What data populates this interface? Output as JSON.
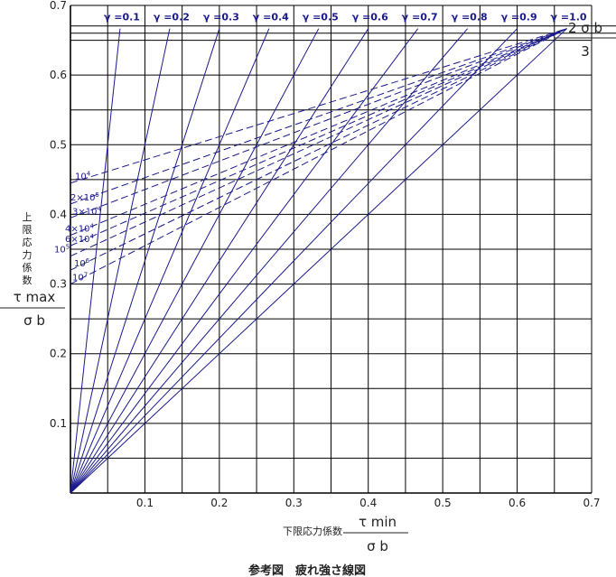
{
  "chart_data": {
    "type": "line",
    "title": "参考図　疲れ強さ線図",
    "xlabel": "下限応力係数",
    "xlabel_fraction": {
      "numerator": "τ min",
      "denominator": "σ b"
    },
    "ylabel": "上限応力係数",
    "ylabel_fraction": {
      "numerator": "τ max",
      "denominator": "σ b"
    },
    "xlim": [
      0,
      0.7
    ],
    "ylim": [
      0,
      0.7
    ],
    "x_ticks": [
      "0.1",
      "0.2",
      "0.3",
      "0.4",
      "0.5",
      "0.6",
      "0.7"
    ],
    "y_ticks": [
      "0.1",
      "0.2",
      "0.3",
      "0.4",
      "0.5",
      "0.6",
      "0.7"
    ],
    "grid": true,
    "grid_step": 0.05,
    "apex": {
      "x": 0.6667,
      "y": 0.6667,
      "label_numerator": "2 σ b",
      "label_denominator": "3"
    },
    "ratio_lines": [
      {
        "label": "γ =0.1",
        "ratio": 0.1
      },
      {
        "label": "γ =0.2",
        "ratio": 0.2
      },
      {
        "label": "γ =0.3",
        "ratio": 0.3
      },
      {
        "label": "γ =0.4",
        "ratio": 0.4
      },
      {
        "label": "γ =0.5",
        "ratio": 0.5
      },
      {
        "label": "γ =0.6",
        "ratio": 0.6
      },
      {
        "label": "γ =0.7",
        "ratio": 0.7
      },
      {
        "label": "γ =0.8",
        "ratio": 0.8
      },
      {
        "label": "γ =0.9",
        "ratio": 0.9
      },
      {
        "label": "γ =1.0",
        "ratio": 1.0
      }
    ],
    "cycle_lines": [
      {
        "base": "10",
        "exp": "4",
        "y0": 0.445
      },
      {
        "base": "2×10",
        "exp": "5",
        "y0": 0.415
      },
      {
        "base": "3×10",
        "exp": "4",
        "y0": 0.395
      },
      {
        "base": "4×10",
        "exp": "4",
        "y0": 0.37
      },
      {
        "base": "6×10",
        "exp": "4",
        "y0": 0.355
      },
      {
        "base": "10",
        "exp": "5",
        "y0": 0.34
      },
      {
        "base": "10",
        "exp": "6",
        "y0": 0.32
      },
      {
        "base": "10",
        "exp": "7",
        "y0": 0.3
      }
    ],
    "colors": {
      "lines": "#1a1a8c",
      "grid": "#000000"
    }
  }
}
